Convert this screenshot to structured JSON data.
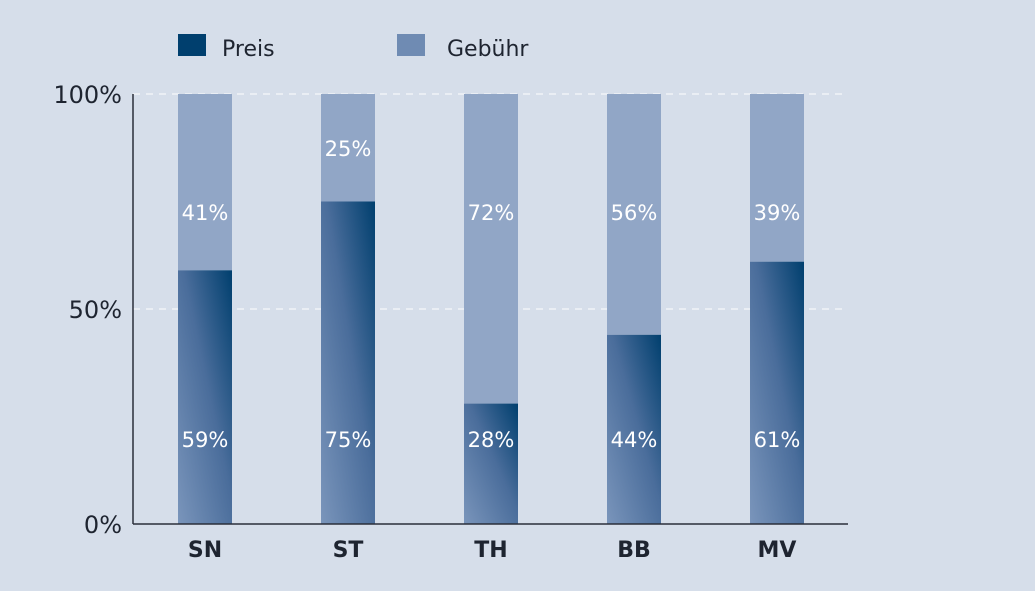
{
  "chart_data": {
    "type": "bar",
    "stacked": true,
    "categories": [
      "SN",
      "ST",
      "TH",
      "BB",
      "MV"
    ],
    "series": [
      {
        "name": "Preis",
        "values": [
          59,
          75,
          28,
          44,
          61
        ],
        "labels": [
          "59%",
          "75%",
          "28%",
          "44%",
          "61%"
        ]
      },
      {
        "name": "Gebühr",
        "values": [
          41,
          25,
          72,
          56,
          39
        ],
        "labels": [
          "41%",
          "25%",
          "72%",
          "56%",
          "39%"
        ]
      }
    ],
    "yticks": [
      {
        "value": 0,
        "label": "0%"
      },
      {
        "value": 50,
        "label": "50%"
      },
      {
        "value": 100,
        "label": "100%"
      }
    ],
    "ylim": [
      0,
      100
    ],
    "grid": true,
    "legend_position": "top-left",
    "colors": {
      "background": "#d6deea",
      "preis_top": "#003f6e",
      "preis_bottom": "#7a95bb",
      "gebuehr": "#91a6c6",
      "legend_preis": "#003f6e",
      "legend_gebuehr": "#6f8bb3",
      "axis": "#2a2f3a",
      "grid": "#ffffff"
    }
  }
}
